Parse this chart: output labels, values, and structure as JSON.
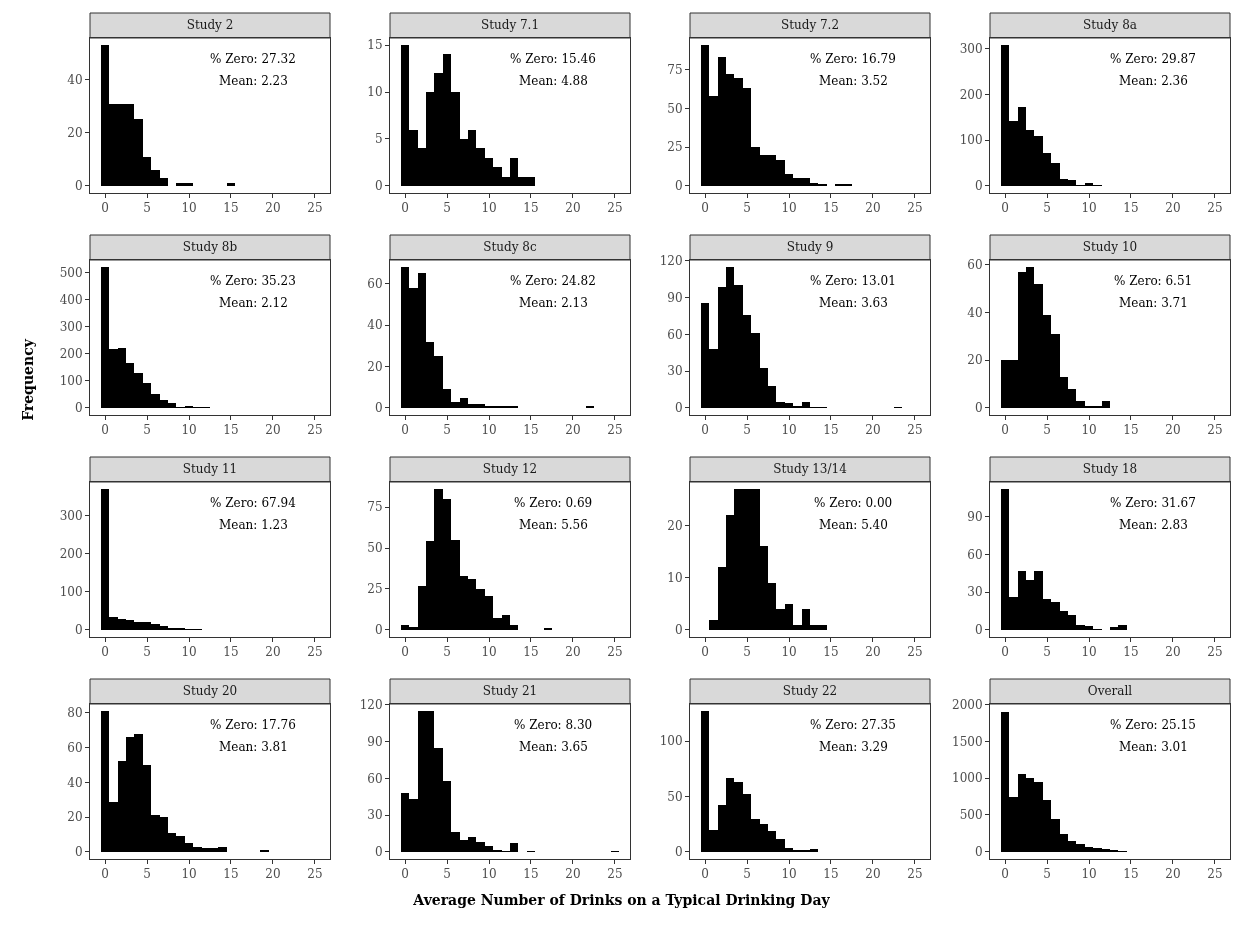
{
  "chart_data": [
    {
      "type": "histogram",
      "title": "Study 2",
      "bins": [
        -0.5,
        0.5,
        1.5,
        2.5,
        3.5,
        4.5,
        5.5,
        6.5,
        7.5,
        8.5,
        9.5,
        10.5,
        11.5,
        12.5,
        13.5,
        14.5,
        15.5
      ],
      "values": [
        53,
        31,
        31,
        31,
        25,
        11,
        6,
        3,
        0,
        1,
        1,
        0,
        0,
        0,
        0,
        1
      ],
      "color": "#000000",
      "xlim": [
        -1.8,
        26.8
      ],
      "xticks": [
        0,
        5,
        10,
        15,
        20,
        25
      ],
      "ylim": [
        -2.65,
        55.65
      ],
      "yticks": [
        0,
        20,
        40
      ],
      "annotations": [
        "% Zero: 27.32",
        "Mean: 2.23"
      ]
    },
    {
      "type": "histogram",
      "title": "Study 7.1",
      "bins": [
        -0.5,
        0.5,
        1.5,
        2.5,
        3.5,
        4.5,
        5.5,
        6.5,
        7.5,
        8.5,
        9.5,
        10.5,
        11.5,
        12.5,
        13.5,
        14.5,
        15.5
      ],
      "values": [
        15,
        6,
        4,
        10,
        12,
        14,
        10,
        5,
        6,
        4,
        3,
        2,
        1,
        3,
        1,
        1
      ],
      "color": "#000000",
      "xlim": [
        -1.8,
        26.8
      ],
      "xticks": [
        0,
        5,
        10,
        15,
        20,
        25
      ],
      "ylim": [
        -0.75,
        15.75
      ],
      "yticks": [
        0,
        5,
        10,
        15
      ],
      "annotations": [
        "% Zero: 15.46",
        "Mean: 4.88"
      ]
    },
    {
      "type": "histogram",
      "title": "Study 7.2",
      "bins": [
        -0.5,
        0.5,
        1.5,
        2.5,
        3.5,
        4.5,
        5.5,
        6.5,
        7.5,
        8.5,
        9.5,
        10.5,
        11.5,
        12.5,
        13.5,
        14.5,
        15.5,
        16.5,
        17.5
      ],
      "values": [
        91,
        58,
        83,
        72,
        70,
        63,
        25,
        20,
        20,
        17,
        8,
        5,
        5,
        2,
        1,
        0,
        1,
        1
      ],
      "color": "#000000",
      "xlim": [
        -1.8,
        26.8
      ],
      "xticks": [
        0,
        5,
        10,
        15,
        20,
        25
      ],
      "ylim": [
        -4.55,
        95.55
      ],
      "yticks": [
        0,
        25,
        50,
        75
      ],
      "annotations": [
        "% Zero: 16.79",
        "Mean: 3.52"
      ]
    },
    {
      "type": "histogram",
      "title": "Study 8a",
      "bins": [
        -0.5,
        0.5,
        1.5,
        2.5,
        3.5,
        4.5,
        5.5,
        6.5,
        7.5,
        8.5,
        9.5,
        10.5,
        11.5,
        12.5
      ],
      "values": [
        308,
        143,
        172,
        123,
        110,
        72,
        50,
        16,
        13,
        3,
        7,
        3,
        1
      ],
      "color": "#000000",
      "xlim": [
        -1.8,
        26.8
      ],
      "xticks": [
        0,
        5,
        10,
        15,
        20,
        25
      ],
      "ylim": [
        -15.4,
        323.4
      ],
      "yticks": [
        0,
        100,
        200,
        300
      ],
      "annotations": [
        "% Zero: 29.87",
        "Mean: 2.36"
      ]
    },
    {
      "type": "histogram",
      "title": "Study 8b",
      "ylabel": "Frequency",
      "bins": [
        -0.5,
        0.5,
        1.5,
        2.5,
        3.5,
        4.5,
        5.5,
        6.5,
        7.5,
        8.5,
        9.5,
        10.5,
        11.5,
        12.5,
        13.5,
        14.5,
        15.5
      ],
      "values": [
        520,
        217,
        220,
        165,
        130,
        92,
        50,
        28,
        18,
        5,
        6,
        2,
        3,
        1,
        1,
        1
      ],
      "color": "#000000",
      "xlim": [
        -1.8,
        26.8
      ],
      "xticks": [
        0,
        5,
        10,
        15,
        20,
        25
      ],
      "ylim": [
        -26,
        546
      ],
      "yticks": [
        0,
        100,
        200,
        300,
        400,
        500
      ],
      "annotations": [
        "% Zero: 35.23",
        "Mean: 2.12"
      ]
    },
    {
      "type": "histogram",
      "title": "Study 8c",
      "bins": [
        -0.5,
        0.5,
        1.5,
        2.5,
        3.5,
        4.5,
        5.5,
        6.5,
        7.5,
        8.5,
        9.5,
        10.5,
        11.5,
        12.5,
        13.5,
        14.5,
        15.5,
        16.5,
        17.5,
        18.5,
        19.5,
        20.5,
        21.5,
        22.5
      ],
      "values": [
        68,
        58,
        65,
        32,
        25,
        9,
        3,
        5,
        2,
        2,
        1,
        1,
        1,
        1,
        0,
        0,
        0,
        0,
        0,
        0,
        0,
        0,
        1
      ],
      "color": "#000000",
      "xlim": [
        -1.8,
        26.8
      ],
      "xticks": [
        0,
        5,
        10,
        15,
        20,
        25
      ],
      "ylim": [
        -3.4,
        71.4
      ],
      "yticks": [
        0,
        20,
        40,
        60
      ],
      "annotations": [
        "% Zero: 24.82",
        "Mean: 2.13"
      ]
    },
    {
      "type": "histogram",
      "title": "Study 9",
      "bins": [
        -0.5,
        0.5,
        1.5,
        2.5,
        3.5,
        4.5,
        5.5,
        6.5,
        7.5,
        8.5,
        9.5,
        10.5,
        11.5,
        12.5,
        13.5,
        14.5,
        15.5,
        16.5,
        17.5,
        18.5,
        19.5,
        20.5,
        21.5,
        22.5,
        23.5
      ],
      "values": [
        86,
        48,
        99,
        115,
        100,
        76,
        61,
        33,
        18,
        5,
        4,
        2,
        5,
        1,
        1,
        0,
        0,
        0,
        0,
        0,
        0,
        0,
        0,
        1
      ],
      "color": "#000000",
      "xlim": [
        -1.8,
        26.8
      ],
      "xticks": [
        0,
        5,
        10,
        15,
        20,
        25
      ],
      "ylim": [
        -5.75,
        120.75
      ],
      "yticks": [
        0,
        30,
        60,
        90,
        120
      ],
      "annotations": [
        "% Zero: 13.01",
        "Mean: 3.63"
      ]
    },
    {
      "type": "histogram",
      "title": "Study 10",
      "bins": [
        -0.5,
        0.5,
        1.5,
        2.5,
        3.5,
        4.5,
        5.5,
        6.5,
        7.5,
        8.5,
        9.5,
        10.5,
        11.5,
        12.5
      ],
      "values": [
        20,
        20,
        57,
        59,
        52,
        39,
        31,
        13,
        8,
        3,
        1,
        1,
        3
      ],
      "color": "#000000",
      "xlim": [
        -1.8,
        26.8
      ],
      "xticks": [
        0,
        5,
        10,
        15,
        20,
        25
      ],
      "ylim": [
        -2.95,
        61.95
      ],
      "yticks": [
        0,
        20,
        40,
        60
      ],
      "annotations": [
        "% Zero: 6.51",
        "Mean: 3.71"
      ]
    },
    {
      "type": "histogram",
      "title": "Study 11",
      "bins": [
        -0.5,
        0.5,
        1.5,
        2.5,
        3.5,
        4.5,
        5.5,
        6.5,
        7.5,
        8.5,
        9.5,
        10.5,
        11.5,
        12.5,
        13.5
      ],
      "values": [
        370,
        35,
        30,
        25,
        22,
        20,
        15,
        10,
        6,
        4,
        3,
        2,
        1,
        1
      ],
      "color": "#000000",
      "xlim": [
        -1.8,
        26.8
      ],
      "xticks": [
        0,
        5,
        10,
        15,
        20,
        25
      ],
      "ylim": [
        -18.5,
        388.5
      ],
      "yticks": [
        0,
        100,
        200,
        300
      ],
      "annotations": [
        "% Zero: 67.94",
        "Mean: 1.23"
      ]
    },
    {
      "type": "histogram",
      "title": "Study 12",
      "bins": [
        -0.5,
        0.5,
        1.5,
        2.5,
        3.5,
        4.5,
        5.5,
        6.5,
        7.5,
        8.5,
        9.5,
        10.5,
        11.5,
        12.5,
        13.5,
        14.5,
        15.5,
        16.5,
        17.5
      ],
      "values": [
        3,
        2,
        27,
        54,
        86,
        80,
        55,
        33,
        31,
        25,
        21,
        7,
        9,
        3,
        0,
        0,
        0,
        1
      ],
      "color": "#000000",
      "xlim": [
        -1.8,
        26.8
      ],
      "xticks": [
        0,
        5,
        10,
        15,
        20,
        25
      ],
      "ylim": [
        -4.3,
        90.3
      ],
      "yticks": [
        0,
        25,
        50,
        75
      ],
      "annotations": [
        "% Zero: 0.69",
        "Mean: 5.56"
      ]
    },
    {
      "type": "histogram",
      "title": "Study 13/14",
      "bins": [
        -0.5,
        0.5,
        1.5,
        2.5,
        3.5,
        4.5,
        5.5,
        6.5,
        7.5,
        8.5,
        9.5,
        10.5,
        11.5,
        12.5,
        13.5,
        14.5
      ],
      "values": [
        0,
        2,
        12,
        22,
        27,
        27,
        27,
        16,
        9,
        4,
        5,
        1,
        4,
        1,
        1
      ],
      "color": "#000000",
      "xlim": [
        -1.8,
        26.8
      ],
      "xticks": [
        0,
        5,
        10,
        15,
        20,
        25
      ],
      "ylim": [
        -1.35,
        28.35
      ],
      "yticks": [
        0,
        10,
        20
      ],
      "annotations": [
        "% Zero: 0.00",
        "Mean: 5.40"
      ]
    },
    {
      "type": "histogram",
      "title": "Study 18",
      "bins": [
        -0.5,
        0.5,
        1.5,
        2.5,
        3.5,
        4.5,
        5.5,
        6.5,
        7.5,
        8.5,
        9.5,
        10.5,
        11.5,
        12.5,
        13.5,
        14.5
      ],
      "values": [
        112,
        26,
        47,
        40,
        47,
        25,
        22,
        15,
        12,
        4,
        3,
        1,
        0,
        2,
        4
      ],
      "color": "#000000",
      "xlim": [
        -1.8,
        26.8
      ],
      "xticks": [
        0,
        5,
        10,
        15,
        20,
        25
      ],
      "ylim": [
        -5.6,
        117.6
      ],
      "yticks": [
        0,
        30,
        60,
        90
      ],
      "annotations": [
        "% Zero: 31.67",
        "Mean: 2.83"
      ]
    },
    {
      "type": "histogram",
      "title": "Study 20",
      "bins": [
        -0.5,
        0.5,
        1.5,
        2.5,
        3.5,
        4.5,
        5.5,
        6.5,
        7.5,
        8.5,
        9.5,
        10.5,
        11.5,
        12.5,
        13.5,
        14.5,
        15.5,
        16.5,
        17.5,
        18.5,
        19.5
      ],
      "values": [
        81,
        29,
        52,
        66,
        68,
        50,
        21,
        20,
        11,
        9,
        5,
        3,
        2,
        2,
        3,
        0,
        0,
        0,
        0,
        1
      ],
      "color": "#000000",
      "xlim": [
        -1.8,
        26.8
      ],
      "xticks": [
        0,
        5,
        10,
        15,
        20,
        25
      ],
      "ylim": [
        -4.05,
        85.05
      ],
      "yticks": [
        0,
        20,
        40,
        60,
        80
      ],
      "annotations": [
        "% Zero: 17.76",
        "Mean: 3.81"
      ]
    },
    {
      "type": "histogram",
      "title": "Study 21",
      "xlabel": "Average Number of Drinks on a Typical Drinking Day",
      "bins": [
        -0.5,
        0.5,
        1.5,
        2.5,
        3.5,
        4.5,
        5.5,
        6.5,
        7.5,
        8.5,
        9.5,
        10.5,
        11.5,
        12.5,
        13.5,
        14.5,
        15.5,
        16.5,
        17.5,
        18.5,
        19.5,
        20.5,
        21.5,
        22.5,
        23.5,
        24.5,
        25.5
      ],
      "values": [
        48,
        43,
        115,
        115,
        85,
        58,
        16,
        10,
        12,
        8,
        5,
        2,
        1,
        7,
        0,
        1,
        0,
        0,
        0,
        0,
        0,
        0,
        0,
        0,
        0,
        1
      ],
      "color": "#000000",
      "xlim": [
        -1.8,
        26.8
      ],
      "xticks": [
        0,
        5,
        10,
        15,
        20,
        25
      ],
      "ylim": [
        -5.75,
        120.75
      ],
      "yticks": [
        0,
        30,
        60,
        90,
        120
      ],
      "annotations": [
        "% Zero: 8.30",
        "Mean: 3.65"
      ]
    },
    {
      "type": "histogram",
      "title": "Study 22",
      "bins": [
        -0.5,
        0.5,
        1.5,
        2.5,
        3.5,
        4.5,
        5.5,
        6.5,
        7.5,
        8.5,
        9.5,
        10.5,
        11.5,
        12.5,
        13.5
      ],
      "values": [
        127,
        20,
        42,
        67,
        63,
        52,
        30,
        25,
        19,
        12,
        4,
        2,
        2,
        3
      ],
      "color": "#000000",
      "xlim": [
        -1.8,
        26.8
      ],
      "xticks": [
        0,
        5,
        10,
        15,
        20,
        25
      ],
      "ylim": [
        -6.35,
        133.35
      ],
      "yticks": [
        0,
        50,
        100
      ],
      "annotations": [
        "% Zero: 27.35",
        "Mean: 3.29"
      ]
    },
    {
      "type": "histogram",
      "title": "Overall",
      "bins": [
        -0.5,
        0.5,
        1.5,
        2.5,
        3.5,
        4.5,
        5.5,
        6.5,
        7.5,
        8.5,
        9.5,
        10.5,
        11.5,
        12.5,
        13.5,
        14.5
      ],
      "values": [
        1900,
        750,
        1060,
        1000,
        950,
        700,
        450,
        240,
        150,
        100,
        60,
        50,
        40,
        20,
        10
      ],
      "color": "#000000",
      "xlim": [
        -1.8,
        26.8
      ],
      "xticks": [
        0,
        5,
        10,
        15,
        20,
        25
      ],
      "ylim": [
        -100,
        2010
      ],
      "yticks": [
        0,
        500,
        1000,
        1500,
        2000
      ],
      "annotations": [
        "% Zero: 25.15",
        "Mean: 3.01"
      ]
    }
  ]
}
